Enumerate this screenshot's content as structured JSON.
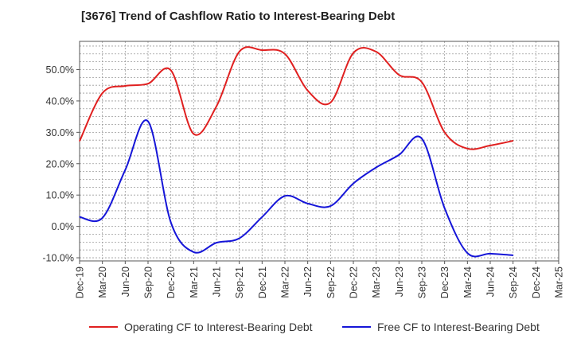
{
  "chart_data": {
    "type": "line",
    "title": "[3676]  Trend of Cashflow Ratio to Interest-Bearing Debt",
    "categories": [
      "Dec-19",
      "Mar-20",
      "Jun-20",
      "Sep-20",
      "Dec-20",
      "Mar-21",
      "Jun-21",
      "Sep-21",
      "Dec-21",
      "Mar-22",
      "Jun-22",
      "Sep-22",
      "Dec-22",
      "Mar-23",
      "Jun-23",
      "Sep-23",
      "Dec-23",
      "Mar-24",
      "Jun-24",
      "Sep-24",
      "Dec-24",
      "Mar-25"
    ],
    "yticks": [
      "-10.0%",
      "0.0%",
      "10.0%",
      "20.0%",
      "30.0%",
      "40.0%",
      "50.0%"
    ],
    "ylim": [
      -11,
      59
    ],
    "grid": true,
    "legend_position": "bottom",
    "series": [
      {
        "name": "Operating CF to Interest-Bearing Debt",
        "color": "#e02020",
        "values": [
          27.2,
          42.5,
          44.8,
          45.5,
          49.8,
          29.5,
          38.3,
          55.7,
          56.2,
          55.0,
          43.3,
          39.5,
          55.3,
          55.7,
          48.3,
          46.0,
          30.0,
          24.8,
          25.8,
          27.3,
          null,
          null
        ]
      },
      {
        "name": "Free CF to Interest-Bearing Debt",
        "color": "#1515d8",
        "values": [
          3.0,
          2.7,
          18.0,
          33.5,
          1.3,
          -8.2,
          -5.2,
          -3.8,
          3.0,
          9.7,
          7.3,
          6.5,
          13.7,
          18.8,
          22.8,
          28.0,
          5.8,
          -8.5,
          -8.7,
          -9.2,
          null,
          null
        ]
      }
    ]
  }
}
